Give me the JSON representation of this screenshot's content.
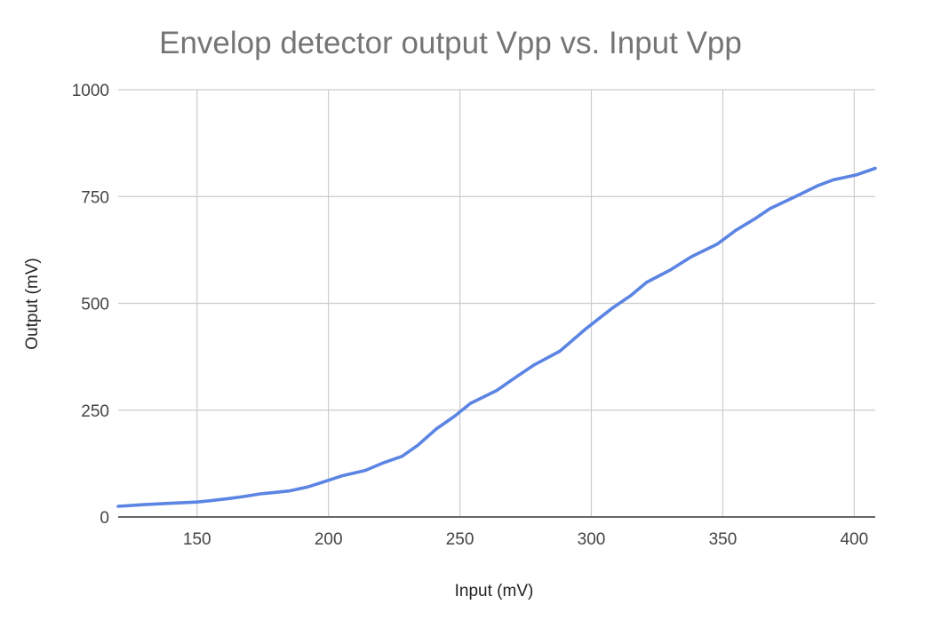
{
  "chart_data": {
    "type": "line",
    "title": "Envelop detector output Vpp vs. Input Vpp",
    "xlabel": "Input (mV)",
    "ylabel": "Output (mV)",
    "xlim": [
      120,
      408
    ],
    "ylim": [
      0,
      1000
    ],
    "xticks": [
      150,
      200,
      250,
      300,
      350,
      400
    ],
    "yticks": [
      0,
      250,
      500,
      750,
      1000
    ],
    "grid": true,
    "legend": "none",
    "colors": {
      "series": "#5b84e3",
      "grid": "#cccccc",
      "baseline": "#333333",
      "title": "#757575"
    },
    "series": [
      {
        "x": [
          120,
          130,
          140,
          150,
          155,
          162,
          168,
          174,
          179,
          185,
          192,
          198,
          205,
          214,
          221,
          228,
          234,
          241,
          248,
          254,
          264,
          271,
          278,
          288,
          298,
          308,
          315,
          321,
          330,
          338,
          348,
          355,
          362,
          368,
          378,
          386,
          392,
          401,
          408
        ],
        "y": [
          25,
          29,
          32,
          35,
          38,
          43,
          48,
          54,
          57,
          61,
          70,
          82,
          96,
          109,
          127,
          142,
          168,
          206,
          236,
          266,
          296,
          326,
          355,
          388,
          441,
          489,
          518,
          549,
          578,
          609,
          639,
          671,
          697,
          722,
          751,
          775,
          789,
          801,
          816
        ]
      }
    ]
  }
}
